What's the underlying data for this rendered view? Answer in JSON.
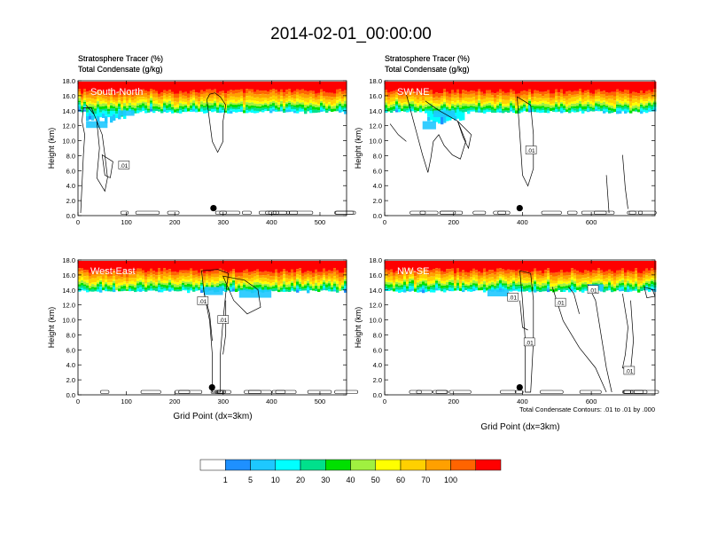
{
  "title": "2014-02-01_00:00:00",
  "common": {
    "header_line1": "Stratosphere Tracer   (%)",
    "header_line2": "Total Condensate   (g/kg)",
    "ylabel": "Height (km)",
    "xlabel": "Grid Point (dx=3km)",
    "contour_note": "Total Condensate Contours: .01 to .01 by .000",
    "contour_label": ".01"
  },
  "colorbar": {
    "colors": [
      "#ffffff",
      "#1e90ff",
      "#1ec8ff",
      "#00ffff",
      "#00e08c",
      "#00e000",
      "#a0f040",
      "#ffff00",
      "#ffd000",
      "#ffa000",
      "#ff6400",
      "#ff0000"
    ],
    "labels": [
      "1",
      "5",
      "10",
      "20",
      "30",
      "40",
      "50",
      "60",
      "70",
      "100"
    ]
  },
  "chart_data": [
    {
      "type": "heatmap",
      "panel_label": "South-North",
      "xlim": [
        0,
        555
      ],
      "ylim": [
        0,
        18
      ],
      "xticks": [
        0,
        100,
        200,
        300,
        400,
        500
      ],
      "yticks": [
        0,
        2,
        4,
        6,
        8,
        10,
        12,
        14,
        16,
        18
      ],
      "ytick_labels": [
        "0.0",
        "2.0",
        "4.0",
        "6.0",
        "8.0",
        "10.0",
        "12.0",
        "14.0",
        "16.0",
        "18.0"
      ],
      "marker": {
        "x": 280,
        "y": 1.0
      },
      "contour_labels": [
        {
          "x": 95,
          "y": 6.7
        }
      ]
    },
    {
      "type": "heatmap",
      "panel_label": "SW-NE",
      "xlim": [
        0,
        785
      ],
      "ylim": [
        0,
        18
      ],
      "xticks": [
        0,
        200,
        400,
        600
      ],
      "yticks": [
        0,
        2,
        4,
        6,
        8,
        10,
        12,
        14,
        16,
        18
      ],
      "ytick_labels": [
        "0.0",
        "2.0",
        "4.0",
        "6.0",
        "8.0",
        "10.0",
        "12.0",
        "14.0",
        "16.0",
        "18.0"
      ],
      "marker": {
        "x": 392,
        "y": 1.0
      },
      "contour_labels": [
        {
          "x": 425,
          "y": 8.7
        }
      ]
    },
    {
      "type": "heatmap",
      "panel_label": "West-East",
      "xlim": [
        0,
        555
      ],
      "ylim": [
        0,
        18
      ],
      "xticks": [
        0,
        100,
        200,
        300,
        400,
        500
      ],
      "yticks": [
        0,
        2,
        4,
        6,
        8,
        10,
        12,
        14,
        16,
        18
      ],
      "ytick_labels": [
        "0.0",
        "2.0",
        "4.0",
        "6.0",
        "8.0",
        "10.0",
        "12.0",
        "14.0",
        "16.0",
        "18.0"
      ],
      "marker": {
        "x": 277,
        "y": 1.0
      },
      "contour_labels": [
        {
          "x": 258,
          "y": 12.5
        },
        {
          "x": 300,
          "y": 10.0
        }
      ]
    },
    {
      "type": "heatmap",
      "panel_label": "NW-SE",
      "xlim": [
        0,
        785
      ],
      "ylim": [
        0,
        18
      ],
      "xticks": [
        0,
        200,
        400,
        600
      ],
      "yticks": [
        0,
        2,
        4,
        6,
        8,
        10,
        12,
        14,
        16,
        18
      ],
      "ytick_labels": [
        "0.0",
        "2.0",
        "4.0",
        "6.0",
        "8.0",
        "10.0",
        "12.0",
        "14.0",
        "16.0",
        "18.0"
      ],
      "marker": {
        "x": 392,
        "y": 1.0
      },
      "contour_labels": [
        {
          "x": 372,
          "y": 13.0
        },
        {
          "x": 510,
          "y": 12.3
        },
        {
          "x": 420,
          "y": 7.0
        },
        {
          "x": 605,
          "y": 14.0
        },
        {
          "x": 710,
          "y": 3.2
        }
      ]
    }
  ]
}
